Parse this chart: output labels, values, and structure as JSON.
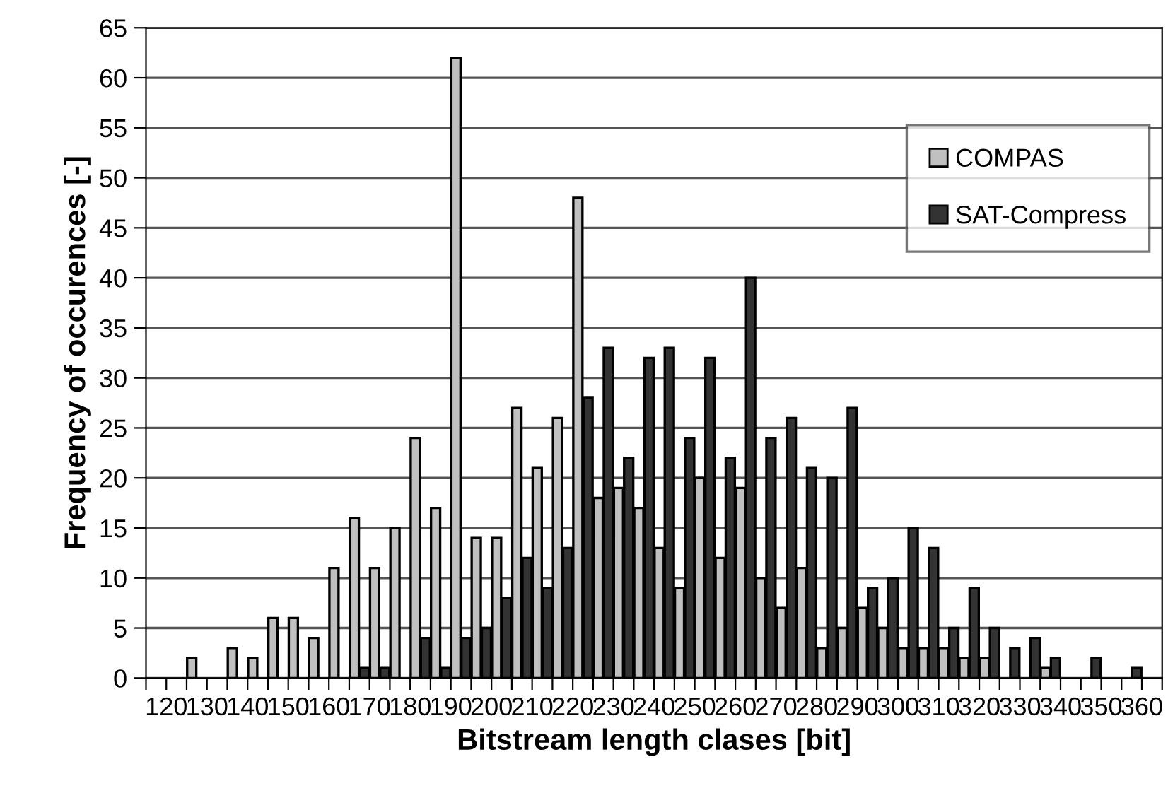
{
  "chart_data": {
    "type": "bar",
    "xlabel": "Bitstream length clases [bit]",
    "ylabel": "Frequency of occurences [-]",
    "x": [
      117.5,
      122.5,
      127.5,
      132.5,
      137.5,
      142.5,
      147.5,
      152.5,
      157.5,
      162.5,
      167.5,
      172.5,
      177.5,
      182.5,
      187.5,
      192.5,
      197.5,
      202.5,
      207.5,
      212.5,
      217.5,
      222.5,
      227.5,
      232.5,
      237.5,
      242.5,
      247.5,
      252.5,
      257.5,
      262.5,
      267.5,
      272.5,
      277.5,
      282.5,
      287.5,
      292.5,
      297.5,
      302.5,
      307.5,
      312.5,
      317.5,
      322.5,
      327.5,
      332.5,
      337.5,
      342.5,
      347.5,
      352.5,
      357.5,
      362.5
    ],
    "series": [
      {
        "name": "COMPAS",
        "color": "#c0c0c0",
        "values": [
          0,
          0,
          2,
          0,
          3,
          2,
          6,
          6,
          4,
          11,
          16,
          11,
          15,
          24,
          17,
          62,
          14,
          14,
          27,
          21,
          26,
          48,
          18,
          19,
          17,
          13,
          9,
          20,
          12,
          19,
          10,
          7,
          11,
          3,
          5,
          7,
          5,
          3,
          3,
          3,
          2,
          2,
          0,
          0,
          1,
          0,
          0,
          0,
          0,
          0
        ]
      },
      {
        "name": "SAT-Compress",
        "color": "#333333",
        "values": [
          0,
          0,
          0,
          0,
          0,
          0,
          0,
          0,
          0,
          0,
          1,
          1,
          0,
          4,
          1,
          4,
          5,
          8,
          12,
          9,
          13,
          28,
          33,
          22,
          32,
          33,
          24,
          32,
          22,
          40,
          24,
          26,
          21,
          20,
          27,
          9,
          10,
          15,
          13,
          5,
          9,
          5,
          3,
          4,
          2,
          0,
          2,
          0,
          1,
          0
        ]
      }
    ],
    "xlim": [
      115,
      365
    ],
    "xticks": [
      {
        "value": 115,
        "label": null
      },
      120,
      {
        "value": 125,
        "label": null
      },
      130,
      {
        "value": 135,
        "label": null
      },
      140,
      {
        "value": 145,
        "label": null
      },
      150,
      {
        "value": 155,
        "label": null
      },
      160,
      {
        "value": 165,
        "label": null
      },
      170,
      {
        "value": 175,
        "label": null
      },
      180,
      {
        "value": 185,
        "label": null
      },
      190,
      {
        "value": 195,
        "label": null
      },
      200,
      {
        "value": 205,
        "label": null
      },
      210,
      {
        "value": 215,
        "label": null
      },
      220,
      {
        "value": 225,
        "label": null
      },
      230,
      {
        "value": 235,
        "label": null
      },
      240,
      {
        "value": 245,
        "label": null
      },
      250,
      {
        "value": 255,
        "label": null
      },
      260,
      {
        "value": 265,
        "label": null
      },
      270,
      {
        "value": 275,
        "label": null
      },
      280,
      {
        "value": 285,
        "label": null
      },
      290,
      {
        "value": 295,
        "label": null
      },
      300,
      {
        "value": 305,
        "label": null
      },
      310,
      {
        "value": 315,
        "label": null
      },
      320,
      {
        "value": 325,
        "label": null
      },
      330,
      {
        "value": 335,
        "label": null
      },
      340,
      {
        "value": 345,
        "label": null
      },
      350,
      {
        "value": 355,
        "label": null
      },
      360,
      {
        "value": 365,
        "label": null
      }
    ],
    "ylim": [
      0,
      65
    ],
    "yticks": [
      0,
      5,
      10,
      15,
      20,
      25,
      30,
      35,
      40,
      45,
      50,
      55,
      60,
      65
    ],
    "grid": "y",
    "legend": "top right"
  }
}
